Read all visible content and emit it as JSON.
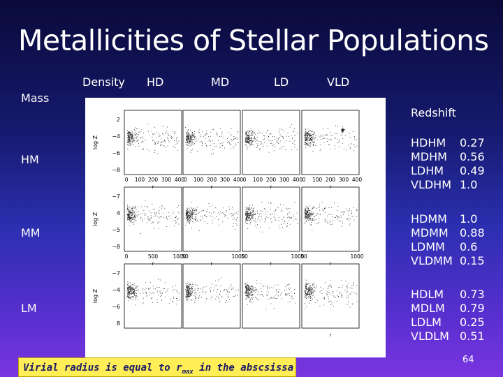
{
  "slide": {
    "title": "Metallicities of Stellar Populations",
    "page_number": "64",
    "caption_prefix": "Virial radius is equal to r",
    "caption_sub": "max",
    "caption_suffix": " in the abscsissa"
  },
  "columns": {
    "density_label": "Density",
    "labels": [
      "HD",
      "MD",
      "LD",
      "VLD"
    ]
  },
  "rows": {
    "mass_label": "Mass",
    "labels": [
      "HM",
      "MM",
      "LM"
    ]
  },
  "plots": {
    "y_axis_label": "log Z",
    "x_axis_label": "r",
    "row1_y_ticks": [
      "2",
      "−4",
      "−6",
      "−8"
    ],
    "row2_y_ticks": [
      "−7",
      "4",
      "−5",
      "−8"
    ],
    "row3_y_ticks": [
      "−7",
      "−4",
      "−6",
      "8"
    ],
    "row1_x_ticks": [
      "0",
      "100",
      "200",
      "300",
      "400"
    ],
    "row2_x_ticks_first": [
      "0",
      "500",
      "1000"
    ],
    "row2_x_ticks_mid": [
      "50",
      "1000"
    ]
  },
  "redshift": {
    "title": "Redshift",
    "groups": [
      [
        {
          "name": "HDHM",
          "value": "0.27"
        },
        {
          "name": "MDHM",
          "value": "0.56"
        },
        {
          "name": "LDHM",
          "value": "0.49"
        },
        {
          "name": "VLDHM",
          "value": "1.0"
        }
      ],
      [
        {
          "name": "HDMM",
          "value": "1.0"
        },
        {
          "name": "MDMM",
          "value": "0.88"
        },
        {
          "name": "LDMM",
          "value": "0.6"
        },
        {
          "name": "VLDMM",
          "value": "0.15"
        }
      ],
      [
        {
          "name": "HDLM",
          "value": "0.73"
        },
        {
          "name": "MDLM",
          "value": "0.79"
        },
        {
          "name": "LDLM",
          "value": "0.25"
        },
        {
          "name": "VLDLM",
          "value": "0.51"
        }
      ]
    ]
  }
}
